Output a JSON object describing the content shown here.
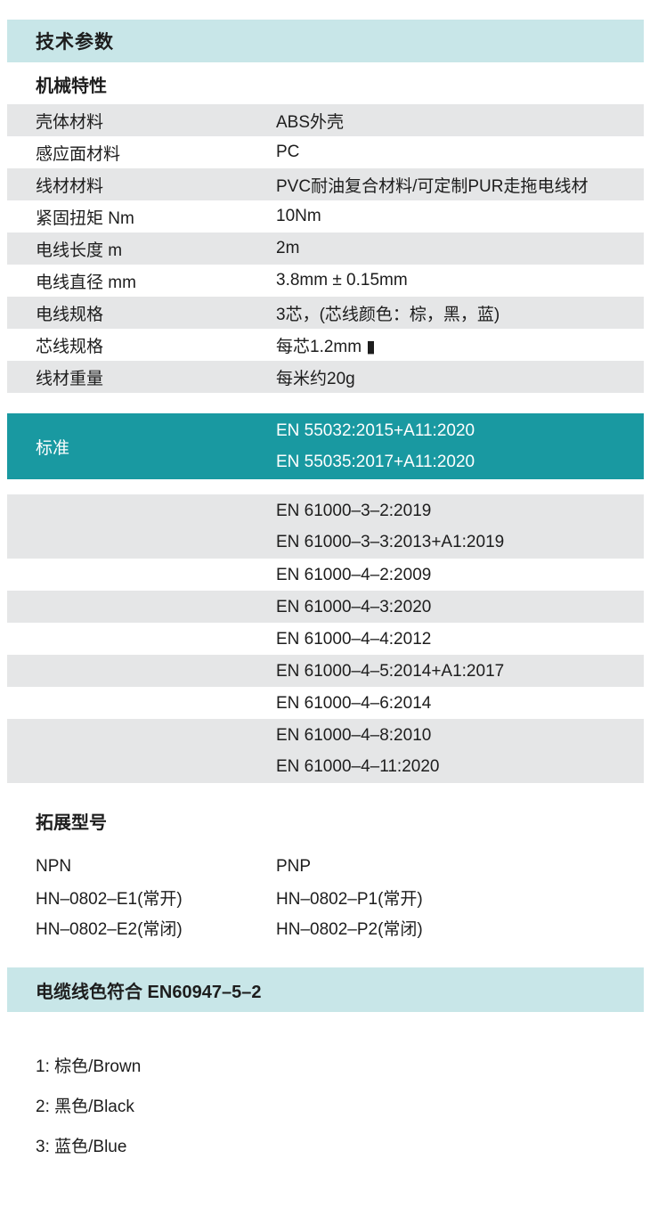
{
  "title": "技术参数",
  "mechanical": {
    "heading": "机械特性",
    "rows": [
      {
        "label": "壳体材料",
        "value": "ABS外壳"
      },
      {
        "label": "感应面材料",
        "value": "PC"
      },
      {
        "label": "线材材料",
        "value": "PVC耐油复合材料/可定制PUR走拖电线材"
      },
      {
        "label": "紧固扭矩 Nm",
        "value": "10Nm"
      },
      {
        "label": "电线长度 m",
        "value": "2m"
      },
      {
        "label": "电线直径 mm",
        "value": "3.8mm ± 0.15mm"
      },
      {
        "label": "电线规格",
        "value": "3芯，(芯线颜色：棕，黑，蓝)"
      },
      {
        "label": "芯线规格",
        "value": "每芯1.2mm ▮"
      },
      {
        "label": "线材重量",
        "value": "每米约20g"
      }
    ]
  },
  "standards": {
    "label": "标准",
    "highlight": [
      "EN 55032:2015+A11:2020",
      "EN 55035:2017+A11:2020"
    ],
    "groups": [
      {
        "lines": [
          "EN 61000–3–2:2019",
          "EN 61000–3–3:2013+A1:2019"
        ]
      },
      {
        "lines": [
          "EN 61000–4–2:2009"
        ]
      },
      {
        "lines": [
          "EN 61000–4–3:2020"
        ]
      },
      {
        "lines": [
          "EN 61000–4–4:2012"
        ]
      },
      {
        "lines": [
          "EN 61000–4–5:2014+A1:2017"
        ]
      },
      {
        "lines": [
          "EN 61000–4–6:2014"
        ]
      },
      {
        "lines": [
          "EN 61000–4–8:2010",
          "EN 61000–4–11:2020"
        ]
      }
    ]
  },
  "models": {
    "heading": "拓展型号",
    "columns": [
      {
        "title": "NPN",
        "items": [
          "HN–0802–E1(常开)",
          "HN–0802–E2(常闭)"
        ]
      },
      {
        "title": "PNP",
        "items": [
          "HN–0802–P1(常开)",
          "HN–0802–P2(常闭)"
        ]
      }
    ]
  },
  "cable": {
    "heading": "电缆线色符合 EN60947–5–2",
    "wires": [
      "1: 棕色/Brown",
      "2: 黑色/Black",
      "3: 蓝色/Blue"
    ]
  },
  "colors": {
    "accent_teal": "#1999a1",
    "pale_teal": "#c8e6e8",
    "stripe_gray": "#e5e6e7",
    "text": "#1d1d1d",
    "standards_text": "#ffffff"
  }
}
